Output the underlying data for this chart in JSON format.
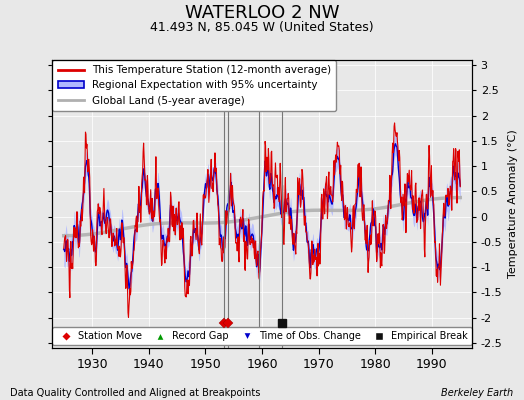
{
  "title": "WATERLOO 2 NW",
  "subtitle": "41.493 N, 85.045 W (United States)",
  "xlabel_left": "Data Quality Controlled and Aligned at Breakpoints",
  "xlabel_right": "Berkeley Earth",
  "ylabel_right": "Temperature Anomaly (°C)",
  "xlim": [
    1923,
    1997
  ],
  "ylim": [
    -2.6,
    3.1
  ],
  "yticks": [
    -2.5,
    -2,
    -1.5,
    -1,
    -0.5,
    0,
    0.5,
    1,
    1.5,
    2,
    2.5,
    3
  ],
  "xticks": [
    1930,
    1940,
    1950,
    1960,
    1970,
    1980,
    1990
  ],
  "station_moves": [
    1953.3,
    1954.0
  ],
  "obs_changes": [
    1959.5
  ],
  "emp_breaks": [
    1963.5
  ],
  "background_color": "#e8e8e8",
  "plot_bg_color": "#e8e8e8",
  "uncertainty_color": "#b0b8ff",
  "regional_color": "#0000cc",
  "station_color": "#dd0000",
  "global_color": "#b0b0b0",
  "vline_color": "#777777",
  "legend_station": "This Temperature Station (12-month average)",
  "legend_regional": "Regional Expectation with 95% uncertainty",
  "legend_global": "Global Land (5-year average)"
}
